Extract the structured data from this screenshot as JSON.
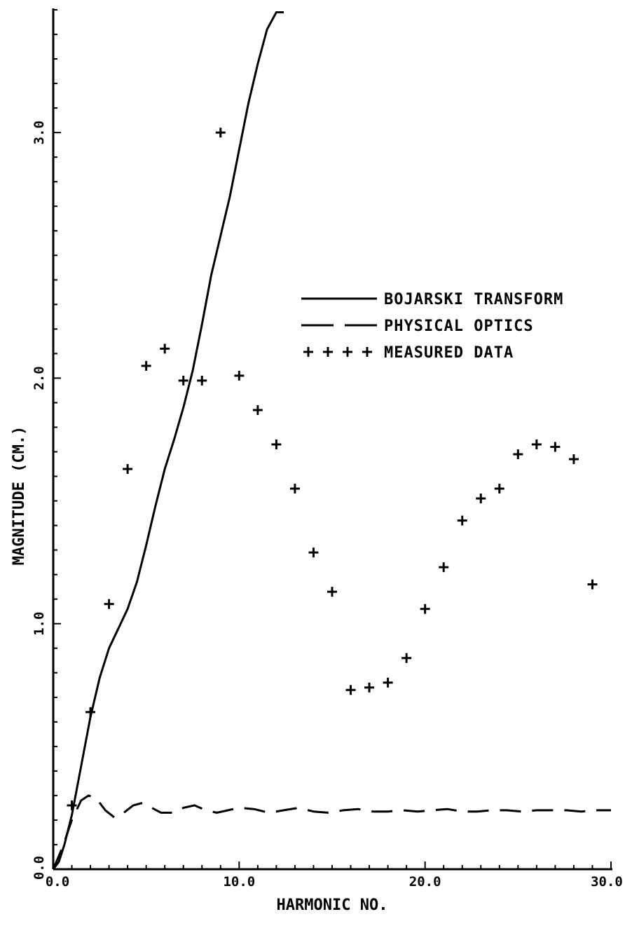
{
  "chart_data": {
    "type": "line",
    "title": "",
    "xlabel": "HARMONIC NO.",
    "ylabel": "MAGNITUDE (CM.)",
    "xlim": [
      0,
      30
    ],
    "ylim": [
      0,
      3.5
    ],
    "x_ticks": [
      {
        "value": 0,
        "label": "0.0"
      },
      {
        "value": 10,
        "label": "10.0"
      },
      {
        "value": 20,
        "label": "20.0"
      },
      {
        "value": 30,
        "label": "30.0"
      }
    ],
    "y_ticks": [
      {
        "value": 0,
        "label": "0.0"
      },
      {
        "value": 1,
        "label": "1.0"
      },
      {
        "value": 2,
        "label": "2.0"
      },
      {
        "value": 3,
        "label": "3.0"
      }
    ],
    "grid": false,
    "legend_position": "right-middle",
    "series": [
      {
        "name": "BOJARSKI TRANSFORM",
        "style": "solid",
        "color": "#000000",
        "points": [
          [
            0,
            0
          ],
          [
            0.3,
            0.03
          ],
          [
            0.6,
            0.1
          ],
          [
            1.0,
            0.22
          ],
          [
            1.5,
            0.42
          ],
          [
            2.0,
            0.62
          ],
          [
            2.5,
            0.78
          ],
          [
            3.0,
            0.9
          ],
          [
            3.5,
            0.98
          ],
          [
            4.0,
            1.06
          ],
          [
            4.5,
            1.17
          ],
          [
            5.0,
            1.32
          ],
          [
            5.5,
            1.48
          ],
          [
            6.0,
            1.63
          ],
          [
            6.5,
            1.75
          ],
          [
            7.0,
            1.88
          ],
          [
            7.5,
            2.03
          ],
          [
            8.0,
            2.22
          ],
          [
            8.5,
            2.42
          ],
          [
            9.0,
            2.58
          ],
          [
            9.5,
            2.74
          ],
          [
            10.0,
            2.93
          ],
          [
            10.5,
            3.12
          ],
          [
            11.0,
            3.28
          ],
          [
            11.5,
            3.42
          ],
          [
            12.0,
            3.49
          ],
          [
            12.4,
            3.49
          ]
        ]
      },
      {
        "name": "PHYSICAL OPTICS",
        "style": "dashed",
        "color": "#000000",
        "points": [
          [
            0,
            0
          ],
          [
            0.5,
            0.09
          ],
          [
            1.0,
            0.2
          ],
          [
            1.5,
            0.28
          ],
          [
            1.9,
            0.3
          ],
          [
            2.3,
            0.29
          ],
          [
            2.8,
            0.24
          ],
          [
            3.3,
            0.21
          ],
          [
            3.8,
            0.23
          ],
          [
            4.3,
            0.26
          ],
          [
            4.8,
            0.27
          ],
          [
            5.3,
            0.25
          ],
          [
            5.8,
            0.23
          ],
          [
            6.5,
            0.23
          ],
          [
            7.0,
            0.25
          ],
          [
            7.6,
            0.26
          ],
          [
            8.2,
            0.24
          ],
          [
            8.8,
            0.23
          ],
          [
            9.4,
            0.24
          ],
          [
            10.0,
            0.25
          ],
          [
            10.8,
            0.245
          ],
          [
            11.6,
            0.23
          ],
          [
            12.4,
            0.24
          ],
          [
            13.2,
            0.25
          ],
          [
            14.0,
            0.235
          ],
          [
            14.8,
            0.23
          ],
          [
            15.6,
            0.24
          ],
          [
            16.4,
            0.245
          ],
          [
            17.2,
            0.235
          ],
          [
            18.0,
            0.235
          ],
          [
            18.8,
            0.24
          ],
          [
            19.6,
            0.235
          ],
          [
            20.4,
            0.24
          ],
          [
            21.2,
            0.245
          ],
          [
            22.0,
            0.235
          ],
          [
            22.8,
            0.235
          ],
          [
            23.6,
            0.24
          ],
          [
            24.4,
            0.24
          ],
          [
            25.2,
            0.235
          ],
          [
            26.0,
            0.24
          ],
          [
            26.8,
            0.24
          ],
          [
            27.6,
            0.24
          ],
          [
            28.4,
            0.235
          ],
          [
            29.2,
            0.24
          ],
          [
            30.0,
            0.24
          ]
        ]
      },
      {
        "name": "MEASURED DATA",
        "style": "markers",
        "marker": "+",
        "color": "#000000",
        "points": [
          [
            1.0,
            0.26
          ],
          [
            2.0,
            0.64
          ],
          [
            3.0,
            1.08
          ],
          [
            4.0,
            1.63
          ],
          [
            5.0,
            2.05
          ],
          [
            6.0,
            2.12
          ],
          [
            7.0,
            1.99
          ],
          [
            8.0,
            1.99
          ],
          [
            9.0,
            3.0
          ],
          [
            10.0,
            2.01
          ],
          [
            11.0,
            1.87
          ],
          [
            12.0,
            1.73
          ],
          [
            13.0,
            1.55
          ],
          [
            14.0,
            1.29
          ],
          [
            15.0,
            1.13
          ],
          [
            16.0,
            0.73
          ],
          [
            17.0,
            0.74
          ],
          [
            18.0,
            0.76
          ],
          [
            19.0,
            0.86
          ],
          [
            20.0,
            1.06
          ],
          [
            21.0,
            1.23
          ],
          [
            22.0,
            1.42
          ],
          [
            23.0,
            1.51
          ],
          [
            24.0,
            1.55
          ],
          [
            25.0,
            1.69
          ],
          [
            26.0,
            1.73
          ],
          [
            27.0,
            1.72
          ],
          [
            28.0,
            1.67
          ],
          [
            29.0,
            1.16
          ]
        ]
      }
    ]
  }
}
